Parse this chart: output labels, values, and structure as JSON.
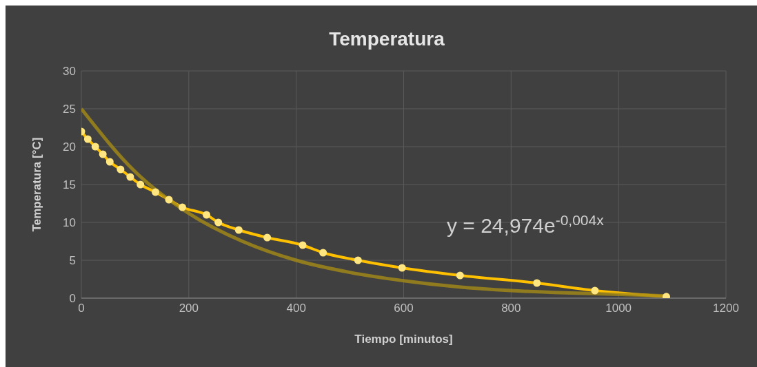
{
  "chart_data": {
    "type": "line",
    "title": "Temperatura",
    "xlabel": "Tiempo [minutos]",
    "ylabel": "Temperatura [°C]",
    "annotations": [
      "y = 24,974e$^{-0,004x}$"
    ],
    "xlim": [
      0,
      1200
    ],
    "xticks": [
      0,
      200,
      400,
      600,
      800,
      1000,
      1200
    ],
    "ylim": [
      0,
      30
    ],
    "yticks": [
      0,
      5,
      10,
      15,
      20,
      25,
      30
    ],
    "grid": true,
    "marker": "circle",
    "line_style": "solid",
    "series": [
      {
        "color": "#ffc000",
        "x": [
          0,
          12,
          26,
          40,
          53,
          73,
          91,
          110,
          138,
          163,
          188,
          233,
          255,
          293,
          346,
          412,
          450,
          515,
          597,
          705,
          848,
          956,
          1089
        ],
        "values": [
          22,
          21,
          20,
          19,
          18,
          17,
          16,
          15,
          14,
          13,
          12,
          11,
          10,
          9,
          8,
          7,
          6,
          5,
          4,
          3,
          2,
          1,
          0.2
        ]
      },
      {
        "type": "line",
        "marker": "none",
        "color": "#a58a16",
        "x": [
          0,
          100,
          200,
          300,
          400,
          500,
          600,
          700,
          800,
          900,
          1000,
          1090
        ],
        "values": [
          25.0,
          16.7,
          11.2,
          7.5,
          5.0,
          3.4,
          2.3,
          1.5,
          1.0,
          0.7,
          0.5,
          0.3
        ]
      }
    ]
  }
}
